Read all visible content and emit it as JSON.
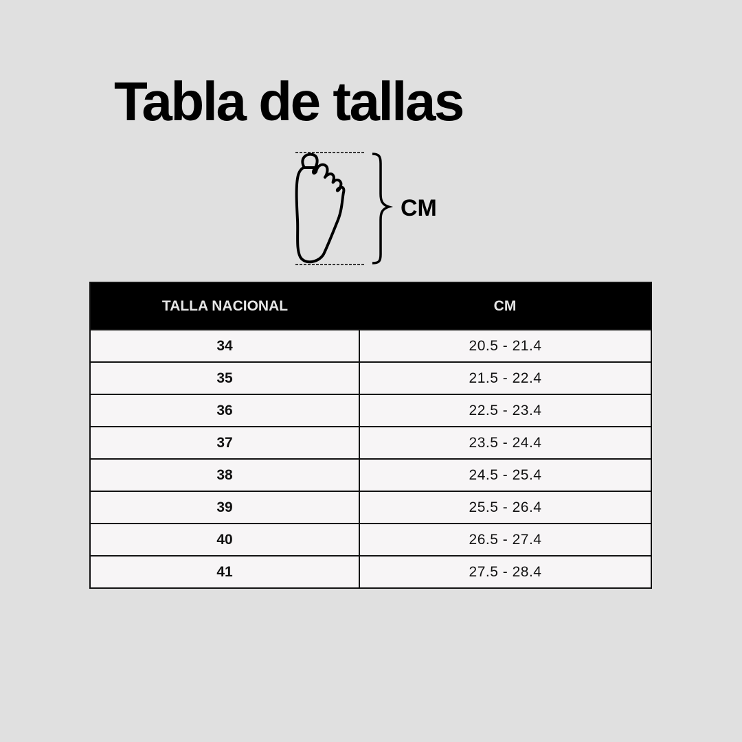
{
  "title": "Tabla de tallas",
  "diagram": {
    "icon": "foot-outline-icon",
    "measure_label": "CM"
  },
  "table": {
    "headers": [
      "TALLA NACIONAL",
      "CM"
    ],
    "rows": [
      {
        "size": "34",
        "cm": "20.5 - 21.4"
      },
      {
        "size": "35",
        "cm": "21.5 - 22.4"
      },
      {
        "size": "36",
        "cm": "22.5 - 23.4"
      },
      {
        "size": "37",
        "cm": "23.5 - 24.4"
      },
      {
        "size": "38",
        "cm": "24.5 - 25.4"
      },
      {
        "size": "39",
        "cm": "25.5 - 26.4"
      },
      {
        "size": "40",
        "cm": "26.5 - 27.4"
      },
      {
        "size": "41",
        "cm": "27.5 - 28.4"
      }
    ]
  },
  "colors": {
    "background": "#e0e0e0",
    "header_bg": "#000000",
    "cell_bg": "#f7f5f6"
  }
}
